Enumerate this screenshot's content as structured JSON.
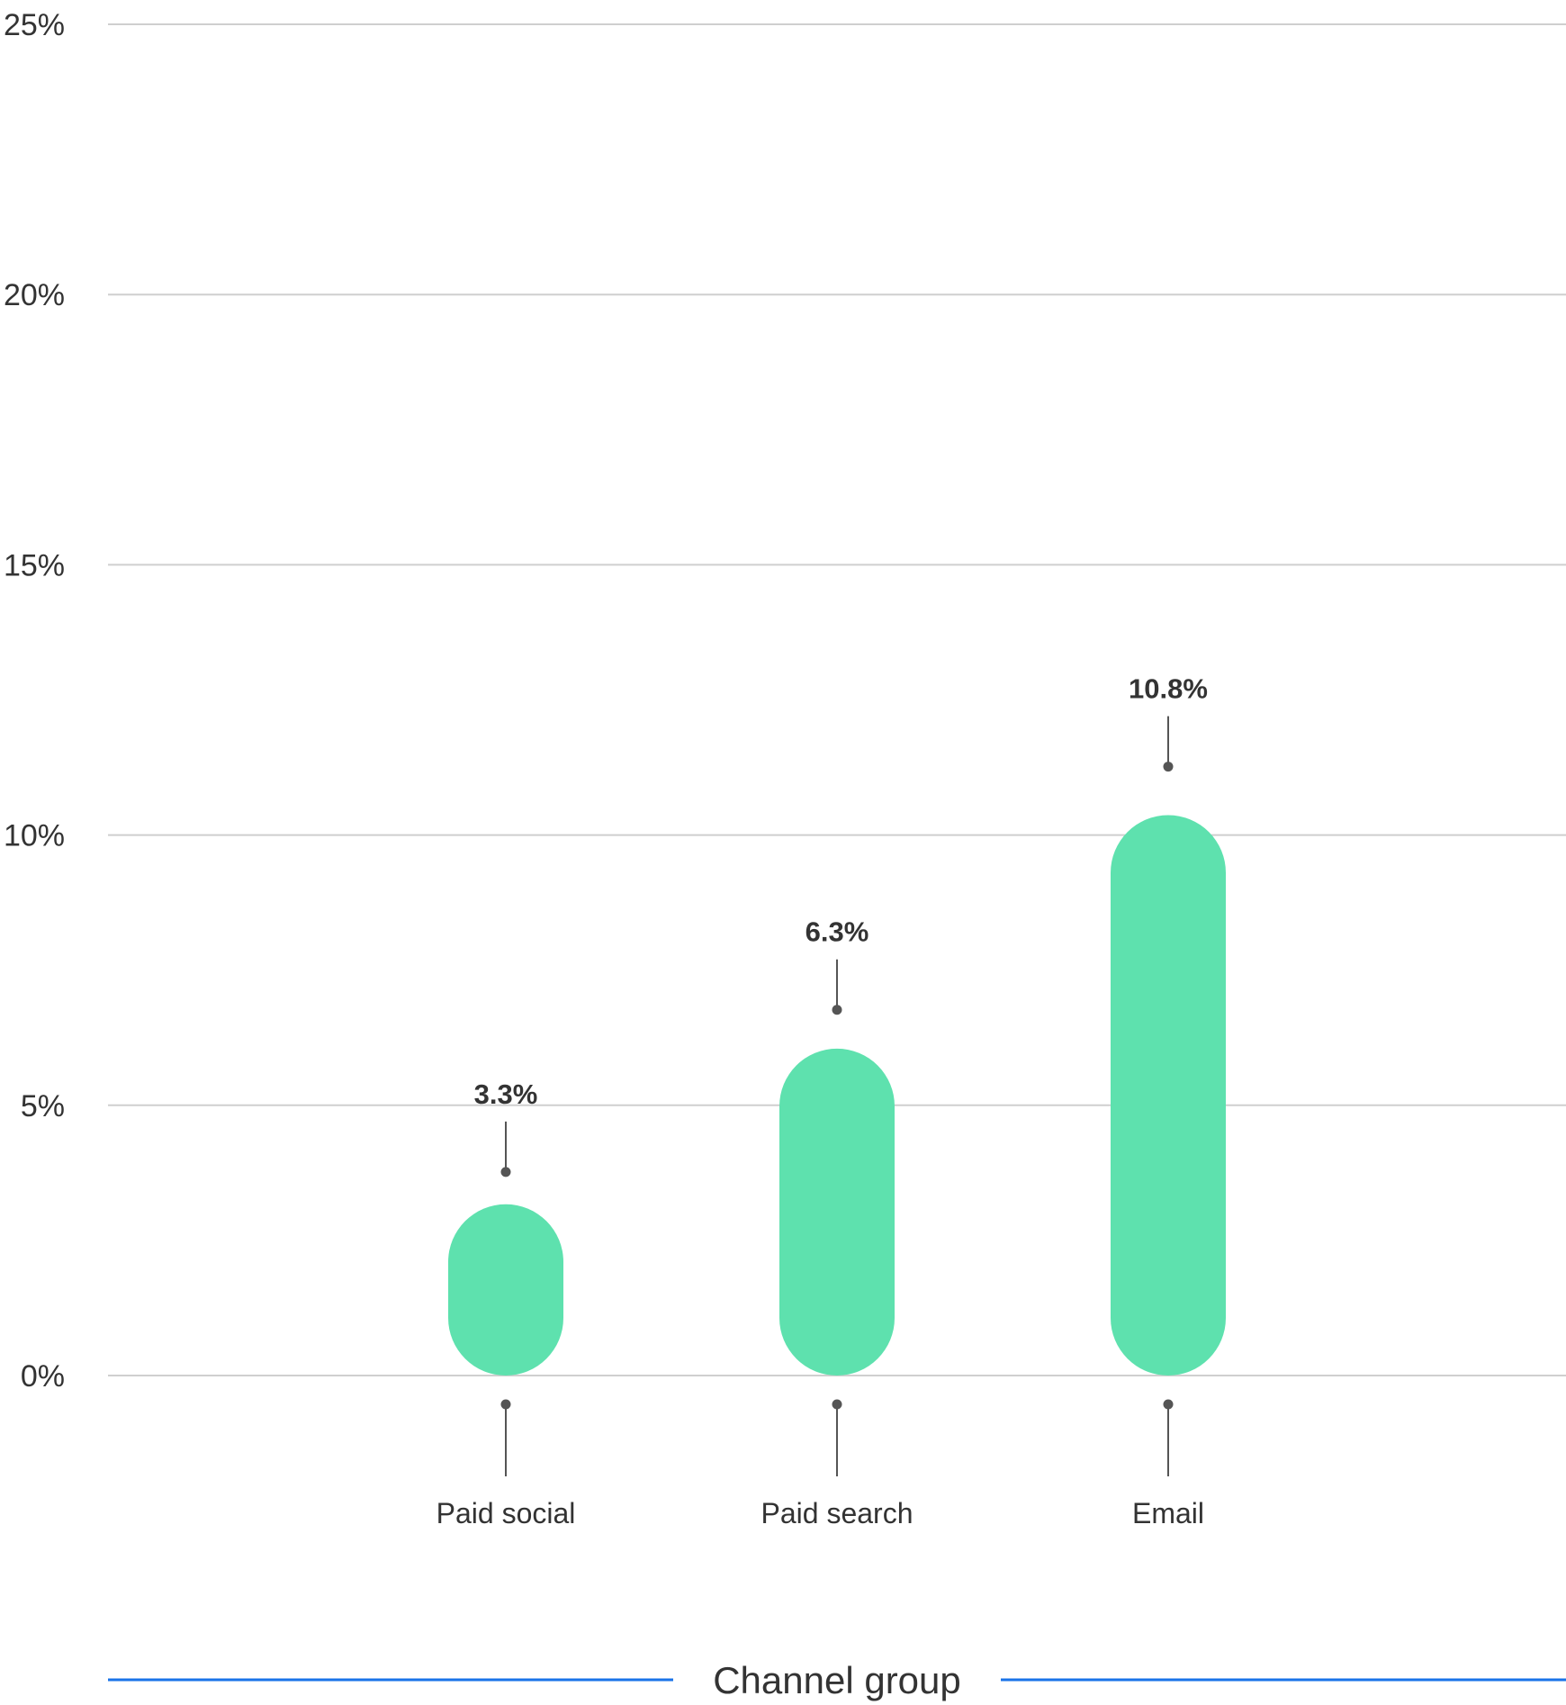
{
  "colors": {
    "bar": "#5ee1ae",
    "grid": "#cfcfcf",
    "connector": "#555555",
    "axis_title_rule": "#1a73e8",
    "text": "#333333"
  },
  "chart_data": {
    "type": "bar",
    "categories": [
      "Paid social",
      "Paid search",
      "Email"
    ],
    "values": [
      3.3,
      6.3,
      10.8
    ],
    "value_labels": [
      "3.3%",
      "6.3%",
      "10.8%"
    ],
    "xlabel": "Channel group",
    "ylabel": "",
    "ylim": [
      0,
      25
    ],
    "yticks": [
      0,
      5,
      10,
      15,
      20,
      25
    ],
    "ytick_labels": [
      "0%",
      "5%",
      "10%",
      "15%",
      "20%",
      "25%"
    ],
    "grid": true,
    "legend": "none"
  }
}
